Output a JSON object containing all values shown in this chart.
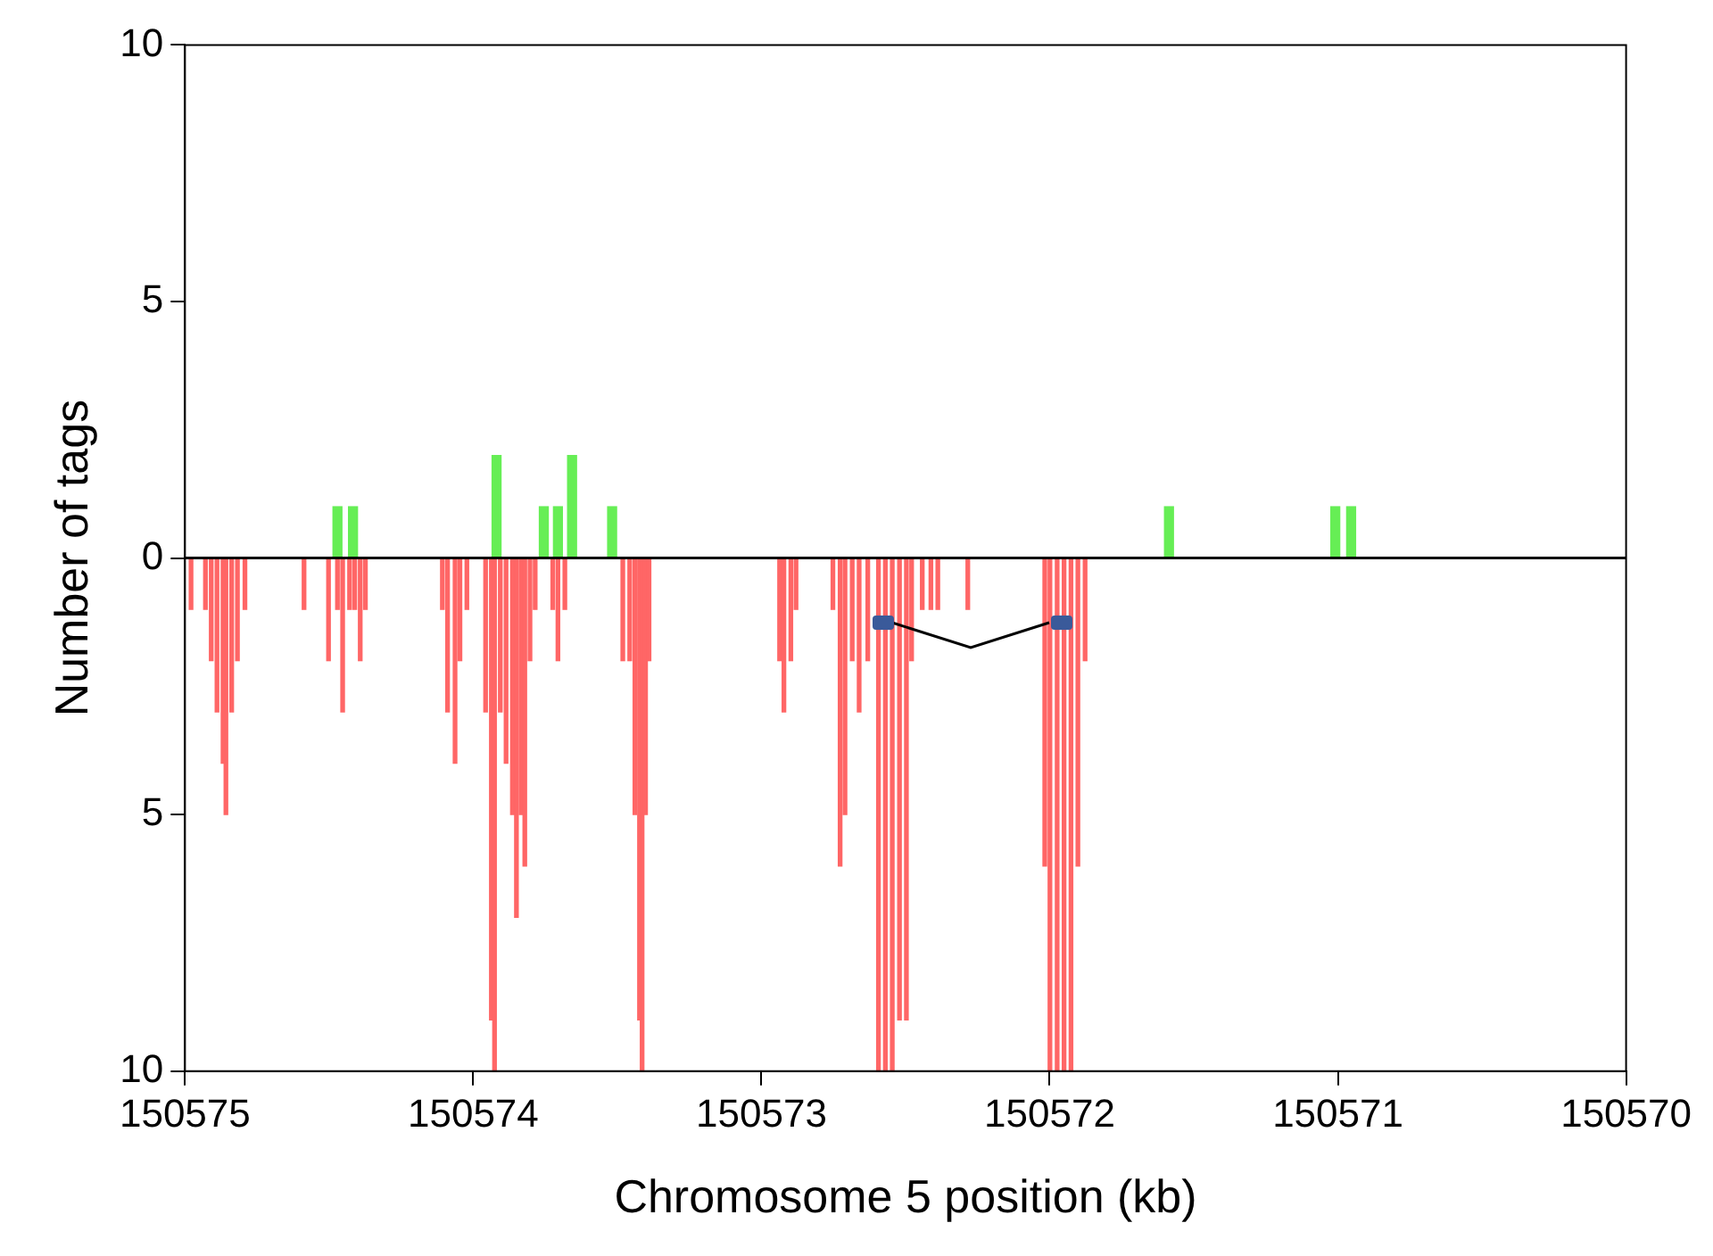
{
  "chart_data": {
    "type": "bar",
    "xlabel": "Chromosome 5 position (kb)",
    "ylabel": "Number of tags",
    "xlim": [
      150575,
      150570
    ],
    "xticks": [
      150575,
      150574,
      150573,
      150572,
      150571,
      150570
    ],
    "ylim": [
      -10,
      10
    ],
    "yticks": [
      {
        "value": -10,
        "label": "10"
      },
      {
        "value": -5,
        "label": "5"
      },
      0,
      5,
      10
    ],
    "grid": false,
    "legend": false,
    "ref_lines": [
      {
        "axis": "y",
        "value": 0,
        "color": "#000000"
      }
    ],
    "series": [
      {
        "color": "#66ee55",
        "x": [
          150574.471,
          150574.417,
          150573.919,
          150573.755,
          150573.706,
          150573.657,
          150573.518,
          150571.586,
          150571.009,
          150570.954
        ],
        "values": [
          1,
          1,
          2,
          1,
          1,
          2,
          1,
          1,
          1,
          1
        ]
      },
      {
        "color": "#ff6666",
        "x": [
          150574.979,
          150574.929,
          150574.909,
          150574.889,
          150574.868,
          150574.858,
          150574.838,
          150574.818,
          150574.792,
          150574.587,
          150574.502,
          150574.471,
          150574.453,
          150574.429,
          150574.411,
          150574.392,
          150574.374,
          150574.107,
          150574.089,
          150574.063,
          150574.046,
          150574.022,
          150573.957,
          150573.937,
          150573.926,
          150573.906,
          150573.886,
          150573.864,
          150573.85,
          150573.834,
          150573.821,
          150573.803,
          150573.785,
          150573.724,
          150573.706,
          150573.682,
          150573.481,
          150573.457,
          150573.439,
          150573.423,
          150573.414,
          150573.402,
          150573.39,
          150572.937,
          150572.922,
          150572.898,
          150572.88,
          150572.752,
          150572.727,
          150572.71,
          150572.685,
          150572.661,
          150572.631,
          150572.594,
          150572.57,
          150572.546,
          150572.521,
          150572.497,
          150572.479,
          150572.442,
          150572.412,
          150572.388,
          150572.284,
          150572.017,
          150571.999,
          150571.974,
          150571.95,
          150571.926,
          150571.902,
          150571.877
        ],
        "values": [
          -1,
          -1,
          -2,
          -3,
          -4,
          -5,
          -3,
          -2,
          -1,
          -1,
          -2,
          -1,
          -3,
          -1,
          -1,
          -2,
          -1,
          -1,
          -3,
          -4,
          -2,
          -1,
          -3,
          -9,
          -10,
          -3,
          -4,
          -5,
          -7,
          -5,
          -6,
          -2,
          -1,
          -1,
          -2,
          -1,
          -2,
          -2,
          -5,
          -9,
          -10,
          -5,
          -2,
          -2,
          -3,
          -2,
          -1,
          -1,
          -6,
          -5,
          -2,
          -3,
          -2,
          -10,
          -10,
          -10,
          -9,
          -9,
          -2,
          -1,
          -1,
          -1,
          -1,
          -6,
          -10,
          -10,
          -10,
          -10,
          -6,
          -2
        ]
      }
    ]
  }
}
